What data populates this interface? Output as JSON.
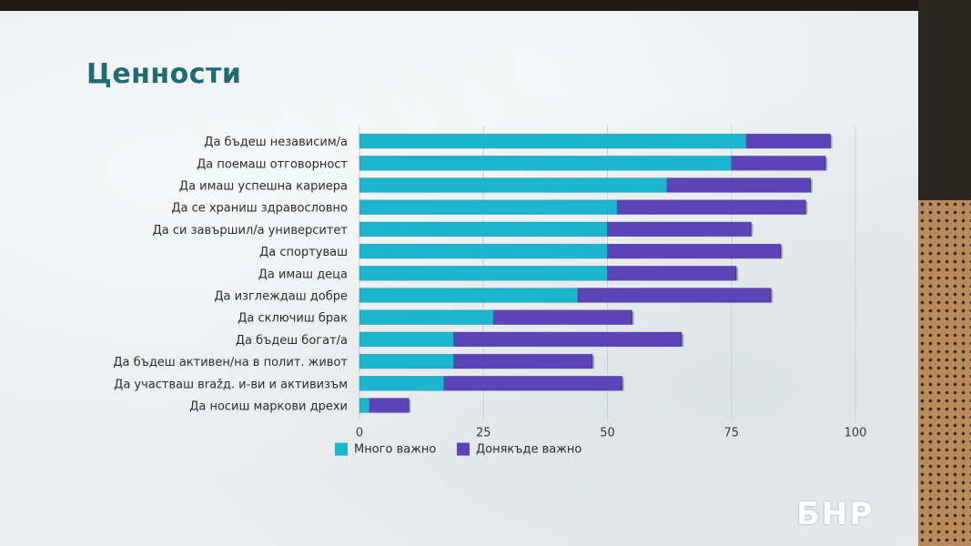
{
  "slide": {
    "title": "Ценности"
  },
  "logo": {
    "text": "БНР"
  },
  "colors": {
    "title": "#1f6b73",
    "very_important": "#1cb4cf",
    "somewhat_important": "#5a44b7",
    "gridline": "#c9cfd3"
  },
  "chart_data": {
    "type": "bar",
    "orientation": "horizontal",
    "stacked": true,
    "title": "Ценности",
    "categories": [
      "Да бъдеш независим/а",
      "Да поемаш отговорност",
      "Да имаш успешна кариера",
      "Да се храниш здравословно",
      "Да си завършил/а университет",
      "Да спортуваш",
      "Да имаш деца",
      "Да изглеждаш добре",
      "Да сключиш брак",
      "Да бъдеш богат/а",
      "Да бъдеш активен/на в полит. живот",
      "Да участваш вražд. и-ви и активизъм",
      "Да носиш маркови дрехи"
    ],
    "series": [
      {
        "name": "Много важно",
        "values": [
          78,
          75,
          62,
          52,
          50,
          50,
          50,
          44,
          27,
          19,
          19,
          17,
          2
        ]
      },
      {
        "name": "Донякъде важно",
        "values": [
          17,
          19,
          29,
          38,
          29,
          35,
          26,
          39,
          28,
          46,
          28,
          36,
          8
        ]
      }
    ],
    "xlim": [
      0,
      100
    ],
    "xticks": [
      0,
      25,
      50,
      75,
      100
    ],
    "grid": true,
    "legend": "bottom-left"
  }
}
